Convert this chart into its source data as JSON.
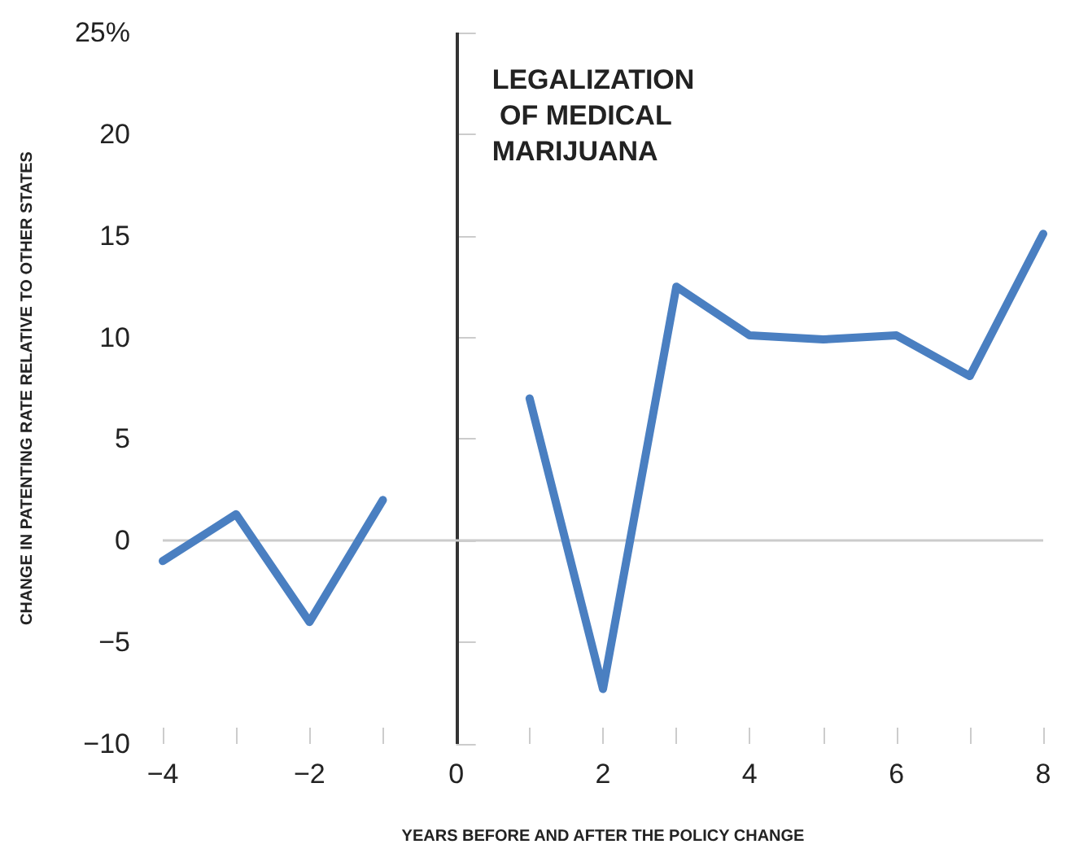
{
  "chart_data": {
    "type": "line",
    "xlabel": "YEARS BEFORE AND AFTER THE POLICY CHANGE",
    "ylabel": "CHANGE IN PATENTING RATE RELATIVE TO OTHER STATES",
    "x": [
      -4,
      -3,
      -2,
      -1,
      0,
      1,
      2,
      3,
      4,
      5,
      6,
      7,
      8
    ],
    "series": [
      {
        "color": "#4a7fc1",
        "values": [
          -1,
          1.3,
          -4,
          2,
          null,
          7,
          -7.3,
          12.5,
          10.1,
          9.9,
          10.1,
          8.1,
          15.1
        ]
      }
    ],
    "xlim": [
      -4,
      8
    ],
    "xticks": [
      -4,
      {
        "value": -3,
        "label": null
      },
      -2,
      {
        "value": -1,
        "label": null
      },
      0,
      {
        "value": 1,
        "label": null
      },
      2,
      {
        "value": 3,
        "label": null
      },
      4,
      {
        "value": 5,
        "label": null
      },
      6,
      {
        "value": 7,
        "label": null
      },
      8
    ],
    "ylim": [
      -10,
      25
    ],
    "yticks": [
      -10,
      -5,
      0,
      5,
      10,
      15,
      20,
      {
        "value": 25,
        "label": "25%"
      }
    ],
    "ref_lines": [
      {
        "axis": "x",
        "value": 0,
        "label": "LEGALIZATION OF MEDICAL MARIJUANA",
        "color": "#333333"
      },
      {
        "axis": "y",
        "value": 0,
        "color": "#cccccc"
      }
    ],
    "grid": false,
    "marker": "none",
    "line_style": "solid"
  }
}
